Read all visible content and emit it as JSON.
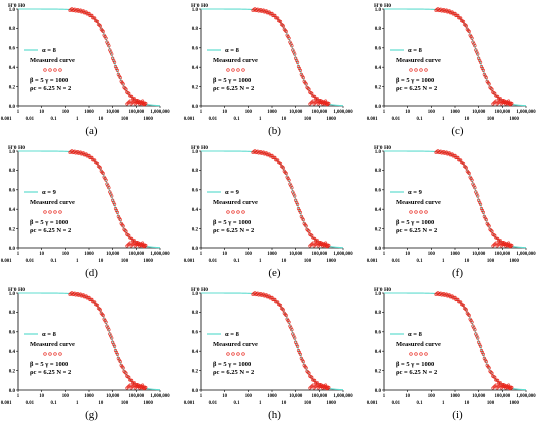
{
  "figure": {
    "colors": {
      "model_curve": "#5fdccf",
      "measured_curve": "#e8251b",
      "axis": "#000000"
    },
    "panel_layout": {
      "columns": 3,
      "rows": 3
    },
    "chart_data": [
      {
        "panel": "(a)",
        "type": "line",
        "ylabel": "H'0/H0",
        "xticks_top": [
          "1",
          "10",
          "100",
          "1000",
          "10,000",
          "100,000",
          "1,000,000"
        ],
        "xticks_bottom": [
          "0.001",
          "0.01",
          "0.1",
          "1",
          "10",
          "100",
          "1000"
        ],
        "yticks": [
          "0.0",
          "0.2",
          "0.4",
          "0.6",
          "0.8",
          "1.0"
        ],
        "ylim": [
          0,
          1
        ],
        "x_scale": "log",
        "legend": {
          "model_label": "α = 8",
          "measured_label": "Measured curve",
          "marker": "o o o o"
        },
        "params": {
          "line1": "β = 5    γ = 1000",
          "line2": "ρc = 6.25    N = 2"
        },
        "series": [
          {
            "name": "α = 8",
            "style": "line",
            "x": [
              1,
              10,
              100,
              1000,
              3000,
              10000,
              30000,
              100000,
              1000000
            ],
            "y": [
              1.0,
              0.99,
              0.97,
              0.88,
              0.75,
              0.45,
              0.18,
              0.04,
              0.0
            ]
          },
          {
            "name": "Measured curve",
            "style": "markers",
            "x": [
              100,
              300,
              1000,
              3000,
              10000,
              30000,
              100000,
              200000
            ],
            "y": [
              0.96,
              0.93,
              0.87,
              0.74,
              0.44,
              0.17,
              0.05,
              0.03
            ]
          }
        ]
      },
      {
        "panel": "(b)",
        "type": "line",
        "ylabel": "H'0/H0",
        "xticks_top": [
          "1",
          "10",
          "100",
          "1000",
          "10,000",
          "100,000",
          "1,000,000"
        ],
        "xticks_bottom": [
          "0.001",
          "0.01",
          "0.1",
          "1",
          "10",
          "100",
          "1000"
        ],
        "yticks": [
          "0.0",
          "0.2",
          "0.4",
          "0.6",
          "0.8",
          "1.0"
        ],
        "ylim": [
          0,
          1
        ],
        "x_scale": "log",
        "legend": {
          "model_label": "α = 8",
          "measured_label": "Measured curve",
          "marker": "o o o o"
        },
        "params": {
          "line1": "β = 5    γ = 1000",
          "line2": "ρc = 6.25    N = 2"
        },
        "series": [
          {
            "name": "α = 8",
            "style": "line",
            "x": [
              1,
              10,
              100,
              1000,
              3000,
              10000,
              30000,
              100000,
              1000000
            ],
            "y": [
              1.0,
              0.99,
              0.97,
              0.88,
              0.75,
              0.45,
              0.18,
              0.04,
              0.0
            ]
          },
          {
            "name": "Measured curve",
            "style": "markers",
            "x": [
              100,
              300,
              1000,
              3000,
              10000,
              30000,
              100000,
              200000
            ],
            "y": [
              0.96,
              0.93,
              0.87,
              0.74,
              0.44,
              0.17,
              0.05,
              0.03
            ]
          }
        ]
      },
      {
        "panel": "(c)",
        "type": "line",
        "ylabel": "H'0/H0",
        "xticks_top": [
          "1",
          "10",
          "100",
          "1000",
          "10,000",
          "100,000",
          "1,000,000"
        ],
        "xticks_bottom": [
          "0.001",
          "0.01",
          "0.1",
          "1",
          "10",
          "100",
          "1000"
        ],
        "yticks": [
          "0.0",
          "0.2",
          "0.4",
          "0.6",
          "0.8",
          "1.0"
        ],
        "ylim": [
          0,
          1
        ],
        "x_scale": "log",
        "legend": {
          "model_label": "α = 8",
          "measured_label": "Measured curve",
          "marker": "o o o o"
        },
        "params": {
          "line1": "β = 5    γ = 1000",
          "line2": "ρc = 6.25    N = 2"
        },
        "series": [
          {
            "name": "α = 8",
            "style": "line",
            "x": [
              1,
              10,
              100,
              1000,
              3000,
              10000,
              30000,
              100000,
              1000000
            ],
            "y": [
              1.0,
              0.99,
              0.97,
              0.88,
              0.75,
              0.45,
              0.18,
              0.04,
              0.0
            ]
          },
          {
            "name": "Measured curve",
            "style": "markers",
            "x": [
              100,
              300,
              1000,
              3000,
              10000,
              30000,
              100000,
              200000
            ],
            "y": [
              0.96,
              0.93,
              0.87,
              0.74,
              0.44,
              0.17,
              0.05,
              0.03
            ]
          }
        ]
      },
      {
        "panel": "(d)",
        "type": "line",
        "ylabel": "H'0/H0",
        "xticks_top": [
          "1",
          "10",
          "100",
          "1000",
          "10,000",
          "100,000",
          "1,000,000"
        ],
        "xticks_bottom": [
          "0.001",
          "0.01",
          "0.1",
          "1",
          "10",
          "100",
          "1000"
        ],
        "yticks": [
          "0.0",
          "0.2",
          "0.4",
          "0.6",
          "0.8",
          "1.0"
        ],
        "ylim": [
          0,
          1
        ],
        "x_scale": "log",
        "legend": {
          "model_label": "α = 9",
          "measured_label": "Measured curve",
          "marker": "o o o o"
        },
        "params": {
          "line1": "β = 5    γ = 1000",
          "line2": "ρc = 6.25    N = 2"
        },
        "series": [
          {
            "name": "α = 9",
            "style": "line",
            "x": [
              1,
              10,
              100,
              1000,
              3000,
              10000,
              30000,
              100000,
              1000000
            ],
            "y": [
              1.0,
              0.99,
              0.97,
              0.88,
              0.75,
              0.45,
              0.18,
              0.04,
              0.0
            ]
          },
          {
            "name": "Measured curve",
            "style": "markers",
            "x": [
              100,
              300,
              1000,
              3000,
              10000,
              30000,
              100000,
              200000
            ],
            "y": [
              0.96,
              0.93,
              0.87,
              0.74,
              0.44,
              0.17,
              0.05,
              0.03
            ]
          }
        ]
      },
      {
        "panel": "(e)",
        "type": "line",
        "ylabel": "H'0/H0",
        "xticks_top": [
          "1",
          "10",
          "100",
          "1000",
          "10,000",
          "100,000",
          "1,000,000"
        ],
        "xticks_bottom": [
          "0.001",
          "0.01",
          "0.1",
          "1",
          "10",
          "100",
          "1000"
        ],
        "yticks": [
          "0.0",
          "0.2",
          "0.4",
          "0.6",
          "0.8",
          "1.0"
        ],
        "ylim": [
          0,
          1
        ],
        "x_scale": "log",
        "legend": {
          "model_label": "α = 9",
          "measured_label": "Measured curve",
          "marker": "o o o o"
        },
        "params": {
          "line1": "β = 5    γ = 1000",
          "line2": "ρc = 6.25    N = 2"
        },
        "series": [
          {
            "name": "α = 9",
            "style": "line",
            "x": [
              1,
              10,
              100,
              1000,
              3000,
              10000,
              30000,
              100000,
              1000000
            ],
            "y": [
              1.0,
              0.99,
              0.97,
              0.88,
              0.75,
              0.45,
              0.18,
              0.04,
              0.0
            ]
          },
          {
            "name": "Measured curve",
            "style": "markers",
            "x": [
              100,
              300,
              1000,
              3000,
              10000,
              30000,
              100000,
              200000
            ],
            "y": [
              0.96,
              0.93,
              0.87,
              0.74,
              0.44,
              0.17,
              0.05,
              0.03
            ]
          }
        ]
      },
      {
        "panel": "(f)",
        "type": "line",
        "ylabel": "H'0/H0",
        "xticks_top": [
          "1",
          "10",
          "100",
          "1000",
          "10,000",
          "100,000",
          "1,000,000"
        ],
        "xticks_bottom": [
          "0.001",
          "0.01",
          "0.1",
          "1",
          "10",
          "100",
          "1000"
        ],
        "yticks": [
          "0.0",
          "0.2",
          "0.4",
          "0.6",
          "0.8",
          "1.0"
        ],
        "ylim": [
          0,
          1
        ],
        "x_scale": "log",
        "legend": {
          "model_label": "α = 9",
          "measured_label": "Measured curve",
          "marker": "o o o o"
        },
        "params": {
          "line1": "β = 5    γ = 1000",
          "line2": "ρc = 6.25    N = 2"
        },
        "series": [
          {
            "name": "α = 9",
            "style": "line",
            "x": [
              1,
              10,
              100,
              1000,
              3000,
              10000,
              30000,
              100000,
              1000000
            ],
            "y": [
              1.0,
              0.99,
              0.97,
              0.88,
              0.75,
              0.45,
              0.18,
              0.04,
              0.0
            ]
          },
          {
            "name": "Measured curve",
            "style": "markers",
            "x": [
              100,
              300,
              1000,
              3000,
              10000,
              30000,
              100000,
              200000
            ],
            "y": [
              0.96,
              0.93,
              0.87,
              0.74,
              0.44,
              0.17,
              0.05,
              0.03
            ]
          }
        ]
      },
      {
        "panel": "(g)",
        "type": "line",
        "ylabel": "H'0/H0",
        "xticks_top": [
          "1",
          "10",
          "100",
          "1000",
          "10,000",
          "100,000",
          "1,000,000"
        ],
        "xticks_bottom": [
          "0.001",
          "0.01",
          "0.1",
          "1",
          "10",
          "100",
          "1000"
        ],
        "yticks": [
          "0.0",
          "0.2",
          "0.4",
          "0.6",
          "0.8",
          "1.0"
        ],
        "ylim": [
          0,
          1
        ],
        "x_scale": "log",
        "legend": {
          "model_label": "α = 8",
          "measured_label": "Measured curve",
          "marker": "o o o o"
        },
        "params": {
          "line1": "β = 5    γ = 1000",
          "line2": "ρc = 6.25    N = 2"
        },
        "series": [
          {
            "name": "α = 8",
            "style": "line",
            "x": [
              1,
              10,
              100,
              1000,
              3000,
              10000,
              30000,
              100000,
              1000000
            ],
            "y": [
              1.0,
              0.99,
              0.97,
              0.88,
              0.75,
              0.45,
              0.18,
              0.04,
              0.0
            ]
          },
          {
            "name": "Measured curve",
            "style": "markers",
            "x": [
              100,
              300,
              1000,
              3000,
              10000,
              30000,
              100000,
              200000
            ],
            "y": [
              0.96,
              0.93,
              0.87,
              0.74,
              0.44,
              0.17,
              0.05,
              0.03
            ]
          }
        ]
      },
      {
        "panel": "(h)",
        "type": "line",
        "ylabel": "H'0/H0",
        "xticks_top": [
          "1",
          "10",
          "100",
          "1000",
          "10,000",
          "100,000",
          "1,000,000"
        ],
        "xticks_bottom": [
          "0.001",
          "0.01",
          "0.1",
          "1",
          "10",
          "100",
          "1000"
        ],
        "yticks": [
          "0.0",
          "0.2",
          "0.4",
          "0.6",
          "0.8",
          "1.0"
        ],
        "ylim": [
          0,
          1
        ],
        "x_scale": "log",
        "legend": {
          "model_label": "α = 8",
          "measured_label": "Measured curve",
          "marker": "o o o o"
        },
        "params": {
          "line1": "β = 5    γ = 1000",
          "line2": "ρc = 6.25    N = 2"
        },
        "series": [
          {
            "name": "α = 8",
            "style": "line",
            "x": [
              1,
              10,
              100,
              1000,
              3000,
              10000,
              30000,
              100000,
              1000000
            ],
            "y": [
              1.0,
              0.99,
              0.97,
              0.88,
              0.75,
              0.45,
              0.18,
              0.04,
              0.0
            ]
          },
          {
            "name": "Measured curve",
            "style": "markers",
            "x": [
              100,
              300,
              1000,
              3000,
              10000,
              30000,
              100000,
              200000
            ],
            "y": [
              0.96,
              0.93,
              0.87,
              0.74,
              0.44,
              0.17,
              0.05,
              0.03
            ]
          }
        ]
      },
      {
        "panel": "(i)",
        "type": "line",
        "ylabel": "H'0/H0",
        "xticks_top": [
          "1",
          "10",
          "100",
          "1000",
          "10,000",
          "100,000",
          "1,000,000"
        ],
        "xticks_bottom": [
          "0.001",
          "0.01",
          "0.1",
          "1",
          "10",
          "100",
          "1000"
        ],
        "yticks": [
          "0.0",
          "0.2",
          "0.4",
          "0.6",
          "0.8",
          "1.0"
        ],
        "ylim": [
          0,
          1
        ],
        "x_scale": "log",
        "legend": {
          "model_label": "α = 8",
          "measured_label": "Measured curve",
          "marker": "o o o o"
        },
        "params": {
          "line1": "β = 5    γ = 1000",
          "line2": "ρc = 6.25    N = 2"
        },
        "series": [
          {
            "name": "α = 8",
            "style": "line",
            "x": [
              1,
              10,
              100,
              1000,
              3000,
              10000,
              30000,
              100000,
              1000000
            ],
            "y": [
              1.0,
              0.99,
              0.97,
              0.88,
              0.75,
              0.45,
              0.18,
              0.04,
              0.0
            ]
          },
          {
            "name": "Measured curve",
            "style": "markers",
            "x": [
              100,
              300,
              1000,
              3000,
              10000,
              30000,
              100000,
              200000
            ],
            "y": [
              0.96,
              0.93,
              0.87,
              0.74,
              0.44,
              0.17,
              0.05,
              0.03
            ]
          }
        ]
      }
    ]
  }
}
